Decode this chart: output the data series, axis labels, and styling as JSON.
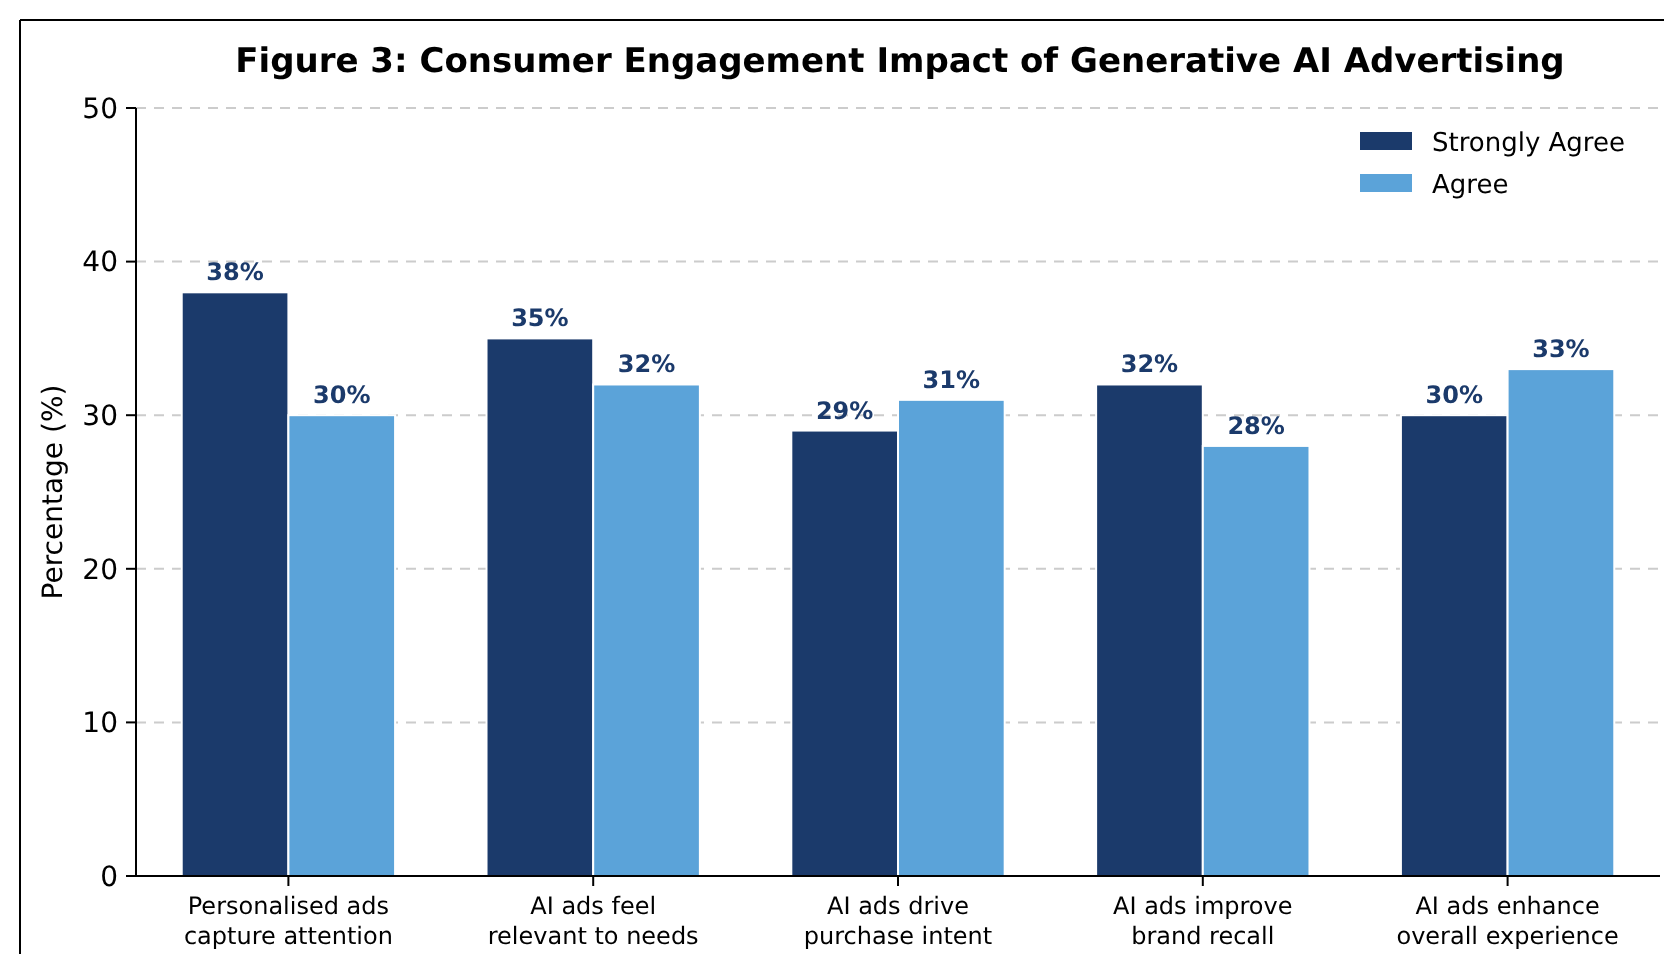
{
  "chart_data": {
    "type": "bar",
    "title": "Figure 3: Consumer Engagement Impact of Generative AI Advertising",
    "ylabel": "Percentage (%)",
    "categories": [
      "Personalised ads\ncapture attention",
      "AI ads feel\nrelevant to needs",
      "AI ads drive\npurchase intent",
      "AI ads improve\nbrand recall",
      "AI ads enhance\noverall experience"
    ],
    "series": [
      {
        "name": "Strongly Agree",
        "color": "#1b3a6b",
        "values": [
          38,
          35,
          29,
          32,
          30
        ],
        "value_labels": [
          "38%",
          "35%",
          "29%",
          "32%",
          "30%"
        ]
      },
      {
        "name": "Agree",
        "color": "#5ba3d9",
        "values": [
          30,
          32,
          31,
          28,
          33
        ],
        "value_labels": [
          "30%",
          "32%",
          "31%",
          "28%",
          "33%"
        ]
      }
    ],
    "ylim": [
      0,
      50
    ],
    "yticks": [
      0,
      10,
      20,
      30,
      40,
      50
    ],
    "grid": "y",
    "legend": "top right"
  }
}
